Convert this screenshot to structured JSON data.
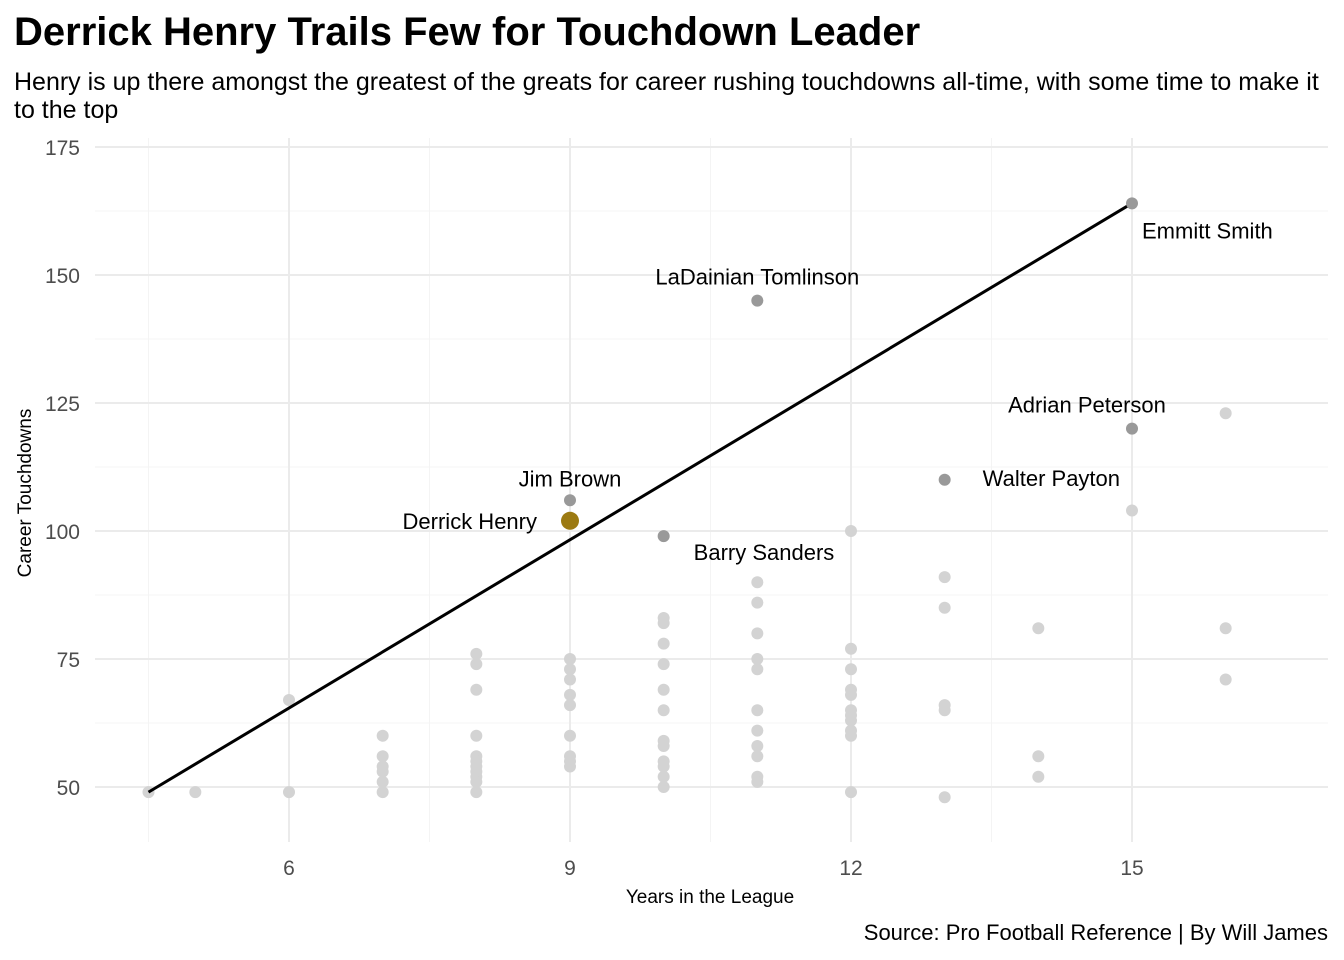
{
  "chart_data": {
    "type": "scatter",
    "title": "Derrick Henry Trails Few for Touchdown Leader",
    "subtitle": "Henry is up there amongst the greatest of the greats for career rushing touchdowns all-time, with some time to make it to the top",
    "caption": "Source: Pro Football Reference | By Will James",
    "xlabel": "Years in the League",
    "ylabel": "Career Touchdowns",
    "xlim": [
      4.5,
      16
    ],
    "ylim": [
      50,
      175
    ],
    "xticks": [
      6,
      9,
      12,
      15
    ],
    "yticks": [
      50,
      75,
      100,
      125,
      150,
      175
    ],
    "grid": true,
    "colors": {
      "others": "#d3d3d3",
      "labeled": "#999999",
      "henry": "#9c7a12",
      "trend": "#000000",
      "grid": "#ebebeb"
    },
    "trend_line": {
      "x": [
        4.5,
        15
      ],
      "y": [
        49,
        164
      ]
    },
    "highlight": {
      "name": "Derrick Henry",
      "x": 9,
      "y": 102
    },
    "labeled_points": [
      {
        "name": "Emmitt Smith",
        "x": 15,
        "y": 164
      },
      {
        "name": "LaDainian Tomlinson",
        "x": 11,
        "y": 145
      },
      {
        "name": "Adrian Peterson",
        "x": 15,
        "y": 120
      },
      {
        "name": "Walter Payton",
        "x": 13,
        "y": 110
      },
      {
        "name": "Jim Brown",
        "x": 9,
        "y": 106
      },
      {
        "name": "Barry Sanders",
        "x": 10,
        "y": 99
      }
    ],
    "other_points": [
      [
        4.5,
        49
      ],
      [
        5,
        49
      ],
      [
        6,
        67
      ],
      [
        6,
        49
      ],
      [
        7,
        60
      ],
      [
        7,
        56
      ],
      [
        7,
        54
      ],
      [
        7,
        53
      ],
      [
        7,
        51
      ],
      [
        7,
        49
      ],
      [
        8,
        76
      ],
      [
        8,
        74
      ],
      [
        8,
        69
      ],
      [
        8,
        60
      ],
      [
        8,
        56
      ],
      [
        8,
        55
      ],
      [
        8,
        54
      ],
      [
        8,
        53
      ],
      [
        8,
        52
      ],
      [
        8,
        51
      ],
      [
        8,
        49
      ],
      [
        9,
        75
      ],
      [
        9,
        73
      ],
      [
        9,
        71
      ],
      [
        9,
        68
      ],
      [
        9,
        66
      ],
      [
        9,
        60
      ],
      [
        9,
        56
      ],
      [
        9,
        55
      ],
      [
        9,
        54
      ],
      [
        10,
        83
      ],
      [
        10,
        82
      ],
      [
        10,
        78
      ],
      [
        10,
        74
      ],
      [
        10,
        69
      ],
      [
        10,
        65
      ],
      [
        10,
        59
      ],
      [
        10,
        58
      ],
      [
        10,
        55
      ],
      [
        10,
        54
      ],
      [
        10,
        52
      ],
      [
        10,
        50
      ],
      [
        11,
        90
      ],
      [
        11,
        86
      ],
      [
        11,
        80
      ],
      [
        11,
        75
      ],
      [
        11,
        73
      ],
      [
        11,
        65
      ],
      [
        11,
        61
      ],
      [
        11,
        58
      ],
      [
        11,
        56
      ],
      [
        11,
        52
      ],
      [
        11,
        51
      ],
      [
        12,
        100
      ],
      [
        12,
        77
      ],
      [
        12,
        73
      ],
      [
        12,
        69
      ],
      [
        12,
        68
      ],
      [
        12,
        65
      ],
      [
        12,
        64
      ],
      [
        12,
        63
      ],
      [
        12,
        61
      ],
      [
        12,
        60
      ],
      [
        12,
        49
      ],
      [
        13,
        91
      ],
      [
        13,
        85
      ],
      [
        13,
        66
      ],
      [
        13,
        65
      ],
      [
        13,
        48
      ],
      [
        14,
        81
      ],
      [
        14,
        56
      ],
      [
        14,
        52
      ],
      [
        15,
        104
      ],
      [
        16,
        123
      ],
      [
        16,
        81
      ],
      [
        16,
        71
      ]
    ]
  }
}
